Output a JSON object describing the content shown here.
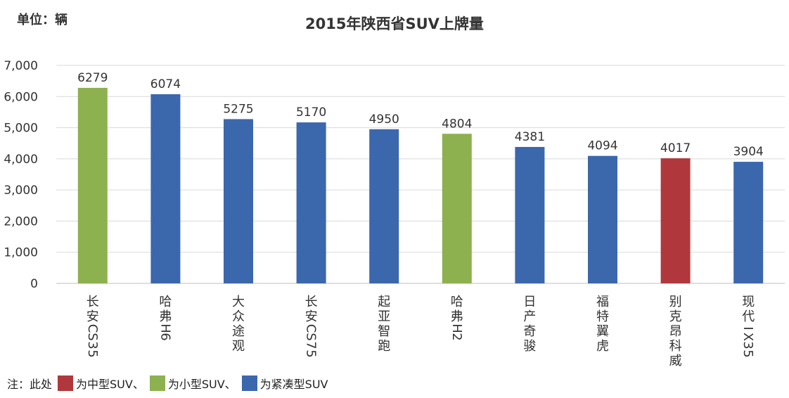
{
  "unit_label": "单位：辆",
  "chart_data": {
    "type": "bar",
    "title": "2015年陕西省SUV上牌量",
    "xlabel": "",
    "ylabel": "",
    "ylim": [
      0,
      7000
    ],
    "yticks": [
      0,
      1000,
      2000,
      3000,
      4000,
      5000,
      6000,
      7000
    ],
    "ytick_labels": [
      "0",
      "1,000",
      "2,000",
      "3,000",
      "4,000",
      "5,000",
      "6,000",
      "7,000"
    ],
    "grid": true,
    "categories": [
      "长安CS35",
      "哈弗H6",
      "大众途观",
      "长安CS75",
      "起亚智跑",
      "哈弗H2",
      "日产奇骏",
      "福特翼虎",
      "别克昂科威",
      "现代IX35"
    ],
    "values": [
      6279,
      6074,
      5275,
      5170,
      4950,
      4804,
      4381,
      4094,
      4017,
      3904
    ],
    "bar_classes": [
      "small",
      "compact",
      "compact",
      "compact",
      "compact",
      "small",
      "compact",
      "compact",
      "mid",
      "compact"
    ],
    "colors": {
      "mid": "#b0383d",
      "small": "#8db14f",
      "compact": "#3b67ad"
    }
  },
  "note": {
    "prefix": "注：此处",
    "items": [
      {
        "key": "mid",
        "label": "为中型SUV、"
      },
      {
        "key": "small",
        "label": "为小型SUV、"
      },
      {
        "key": "compact",
        "label": "为紧凑型SUV"
      }
    ]
  }
}
